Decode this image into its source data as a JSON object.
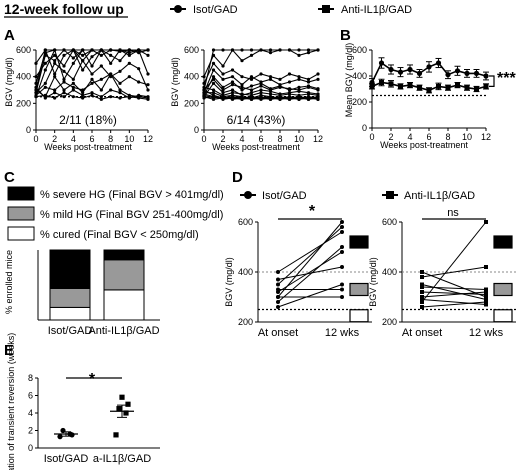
{
  "header": {
    "title": "12-week follow up",
    "legend": [
      {
        "name": "Isot/GAD",
        "marker": "circle"
      },
      {
        "name": "Anti-IL1β/GAD",
        "marker": "square"
      }
    ]
  },
  "colors": {
    "ink": "#000000",
    "mild": "#999999",
    "white": "#ffffff",
    "grid": "#888888"
  },
  "chart_data": [
    {
      "id": "A1",
      "panel": "A",
      "type": "line",
      "xlabel": "Weeks post-treatment",
      "ylabel": "BGV (mg/dl)",
      "xlim": [
        0,
        12
      ],
      "ylim": [
        0,
        600
      ],
      "xticks": [
        0,
        2,
        4,
        6,
        8,
        10,
        12
      ],
      "yticks": [
        0,
        200,
        400,
        600
      ],
      "threshold": 250,
      "annotation": "2/11 (18%)",
      "x": [
        0,
        1,
        2,
        3,
        4,
        5,
        6,
        7,
        8,
        9,
        10,
        11,
        12
      ],
      "series": [
        {
          "values": [
            300,
            600,
            600,
            600,
            600,
            600,
            600,
            600,
            600,
            600,
            600,
            600,
            600
          ]
        },
        {
          "values": [
            350,
            580,
            600,
            600,
            540,
            600,
            600,
            600,
            600,
            600,
            600,
            600,
            600
          ]
        },
        {
          "values": [
            280,
            560,
            520,
            600,
            600,
            560,
            600,
            600,
            600,
            590,
            600,
            600,
            600
          ]
        },
        {
          "values": [
            400,
            500,
            560,
            480,
            600,
            520,
            600,
            560,
            600,
            600,
            580,
            600,
            560
          ]
        },
        {
          "values": [
            250,
            450,
            600,
            380,
            500,
            600,
            480,
            600,
            560,
            520,
            600,
            580,
            600
          ]
        },
        {
          "values": [
            500,
            600,
            420,
            560,
            600,
            450,
            550,
            600,
            500,
            600,
            560,
            600,
            420
          ]
        },
        {
          "values": [
            280,
            350,
            500,
            440,
            380,
            520,
            420,
            480,
            400,
            440,
            500,
            460,
            300
          ]
        },
        {
          "values": [
            300,
            250,
            400,
            300,
            350,
            280,
            380,
            300,
            420,
            350,
            400,
            360,
            340
          ]
        },
        {
          "values": [
            260,
            320,
            300,
            360,
            320,
            300,
            350,
            380,
            420,
            300,
            260,
            250,
            240
          ]
        },
        {
          "values": [
            320,
            240,
            280,
            250,
            300,
            260,
            280,
            250,
            300,
            280,
            240,
            260,
            250
          ]
        },
        {
          "values": [
            250,
            260,
            240,
            280,
            250,
            240,
            260,
            230,
            250,
            240,
            250,
            240,
            230
          ]
        }
      ]
    },
    {
      "id": "A2",
      "panel": "A",
      "type": "line",
      "xlabel": "Weeks post-treatment",
      "ylabel": "BGV (mg/dl)",
      "xlim": [
        0,
        12
      ],
      "ylim": [
        0,
        600
      ],
      "xticks": [
        0,
        2,
        4,
        6,
        8,
        10,
        12
      ],
      "yticks": [
        0,
        200,
        400,
        600
      ],
      "threshold": 250,
      "annotation": "6/14 (43%)",
      "x": [
        0,
        1,
        2,
        3,
        4,
        5,
        6,
        7,
        8,
        9,
        10,
        11,
        12
      ],
      "series": [
        {
          "values": [
            300,
            600,
            600,
            600,
            600,
            600,
            600,
            600,
            600,
            600,
            600,
            600,
            600
          ]
        },
        {
          "values": [
            400,
            560,
            480,
            600,
            520,
            560,
            600,
            580,
            600,
            600,
            560,
            580,
            600
          ]
        },
        {
          "values": [
            350,
            500,
            420,
            450,
            400,
            380,
            420,
            400,
            380,
            420,
            400,
            380,
            420
          ]
        },
        {
          "values": [
            280,
            450,
            380,
            400,
            340,
            400,
            360,
            380,
            340,
            360,
            380,
            360,
            380
          ]
        },
        {
          "values": [
            260,
            400,
            320,
            360,
            300,
            330,
            350,
            310,
            330,
            300,
            320,
            330,
            310
          ]
        },
        {
          "values": [
            300,
            380,
            300,
            340,
            320,
            300,
            330,
            300,
            320,
            310,
            300,
            320,
            300
          ]
        },
        {
          "values": [
            250,
            350,
            280,
            300,
            260,
            280,
            300,
            290,
            270,
            280,
            290,
            280,
            270
          ]
        },
        {
          "values": [
            320,
            300,
            260,
            280,
            270,
            260,
            280,
            270,
            260,
            270,
            260,
            270,
            260
          ]
        },
        {
          "values": [
            280,
            280,
            250,
            260,
            250,
            240,
            260,
            250,
            240,
            250,
            240,
            250,
            240
          ]
        },
        {
          "values": [
            300,
            260,
            240,
            250,
            240,
            250,
            240,
            240,
            250,
            240,
            250,
            240,
            250
          ]
        },
        {
          "values": [
            260,
            240,
            250,
            230,
            240,
            230,
            250,
            230,
            240,
            230,
            240,
            230,
            240
          ]
        },
        {
          "values": [
            250,
            230,
            240,
            240,
            230,
            240,
            230,
            240,
            230,
            240,
            230,
            240,
            230
          ]
        },
        {
          "values": [
            270,
            250,
            230,
            240,
            250,
            230,
            240,
            250,
            230,
            250,
            230,
            250,
            230
          ]
        },
        {
          "values": [
            240,
            250,
            240,
            250,
            230,
            250,
            240,
            230,
            250,
            230,
            250,
            230,
            250
          ]
        }
      ]
    },
    {
      "id": "B",
      "panel": "B",
      "type": "line",
      "xlabel": "Weeks post-treatment",
      "ylabel": "Mean BGV (mg/dl)",
      "xlim": [
        0,
        12
      ],
      "ylim": [
        0,
        600
      ],
      "xticks": [
        0,
        2,
        4,
        6,
        8,
        10,
        12
      ],
      "yticks": [
        0,
        200,
        400,
        600
      ],
      "threshold": 250,
      "significance": "***",
      "x": [
        0,
        1,
        2,
        3,
        4,
        5,
        6,
        7,
        8,
        9,
        10,
        11,
        12
      ],
      "series": [
        {
          "name": "Isot/GAD",
          "marker": "circle",
          "values": [
            350,
            500,
            450,
            430,
            450,
            420,
            470,
            500,
            410,
            440,
            420,
            420,
            400
          ],
          "errors": [
            30,
            40,
            35,
            35,
            35,
            30,
            40,
            35,
            30,
            35,
            30,
            30,
            30
          ]
        },
        {
          "name": "Anti-IL1β/GAD",
          "marker": "square",
          "values": [
            320,
            350,
            340,
            320,
            330,
            310,
            290,
            320,
            310,
            330,
            310,
            300,
            320
          ],
          "errors": [
            20,
            25,
            25,
            20,
            20,
            20,
            20,
            25,
            20,
            20,
            20,
            20,
            20
          ]
        }
      ]
    },
    {
      "id": "C",
      "panel": "C",
      "type": "bar",
      "stacked": true,
      "ylabel": "% enrolled mice",
      "ylim": [
        0,
        100
      ],
      "categories": [
        "Isot/GAD",
        "Anti-IL1β/GAD"
      ],
      "series": [
        {
          "name": "% cured (Final BGV < 250mg/dl)",
          "color": "#ffffff",
          "values": [
            18,
            43
          ]
        },
        {
          "name": "% mild HG (Final BGV 251-400mg/dl)",
          "color": "#999999",
          "values": [
            27,
            43
          ]
        },
        {
          "name": "% severe HG (Final BGV > 401mg/dl)",
          "color": "#000000",
          "values": [
            55,
            14
          ]
        }
      ],
      "legend_order": [
        2,
        1,
        0
      ],
      "significance": "*"
    },
    {
      "id": "D1",
      "panel": "D",
      "type": "line",
      "title": "Isot/GAD",
      "marker": "circle",
      "ylabel": "BGV (mg/dl)",
      "categories": [
        "At onset",
        "12 wks"
      ],
      "ylim": [
        200,
        600
      ],
      "yticks": [
        200,
        400,
        600
      ],
      "thresholds": [
        250,
        400
      ],
      "significance": "*",
      "pairs": [
        [
          300,
          600
        ],
        [
          350,
          580
        ],
        [
          400,
          560
        ],
        [
          280,
          500
        ],
        [
          320,
          480
        ],
        [
          370,
          420
        ],
        [
          260,
          350
        ],
        [
          330,
          330
        ],
        [
          300,
          300
        ]
      ]
    },
    {
      "id": "D2",
      "panel": "D",
      "type": "line",
      "title": "Anti-IL1β/GAD",
      "marker": "square",
      "ylabel": "BGV (mg/dl)",
      "categories": [
        "At onset",
        "12 wks"
      ],
      "ylim": [
        200,
        600
      ],
      "yticks": [
        200,
        400,
        600
      ],
      "thresholds": [
        250,
        400
      ],
      "significance": "ns",
      "pairs": [
        [
          280,
          600
        ],
        [
          380,
          420
        ],
        [
          340,
          330
        ],
        [
          300,
          320
        ],
        [
          320,
          310
        ],
        [
          400,
          300
        ],
        [
          260,
          280
        ],
        [
          350,
          290
        ],
        [
          290,
          270
        ]
      ]
    },
    {
      "id": "E",
      "panel": "E",
      "type": "scatter",
      "ylabel": "Duration of transient reversion (weeks)",
      "categories": [
        "Isot/GAD",
        "a-IL1β/GAD"
      ],
      "ylim": [
        0,
        8
      ],
      "yticks": [
        0,
        2,
        4,
        6,
        8
      ],
      "significance": "*",
      "groups": [
        {
          "marker": "circle",
          "values": [
            1.3,
            1.6,
            2.0,
            1.5
          ],
          "mean": 1.6,
          "sem": 0.25
        },
        {
          "marker": "square",
          "values": [
            1.5,
            4.0,
            4.5,
            5.0,
            5.8
          ],
          "mean": 4.2,
          "sem": 0.7
        }
      ]
    }
  ]
}
